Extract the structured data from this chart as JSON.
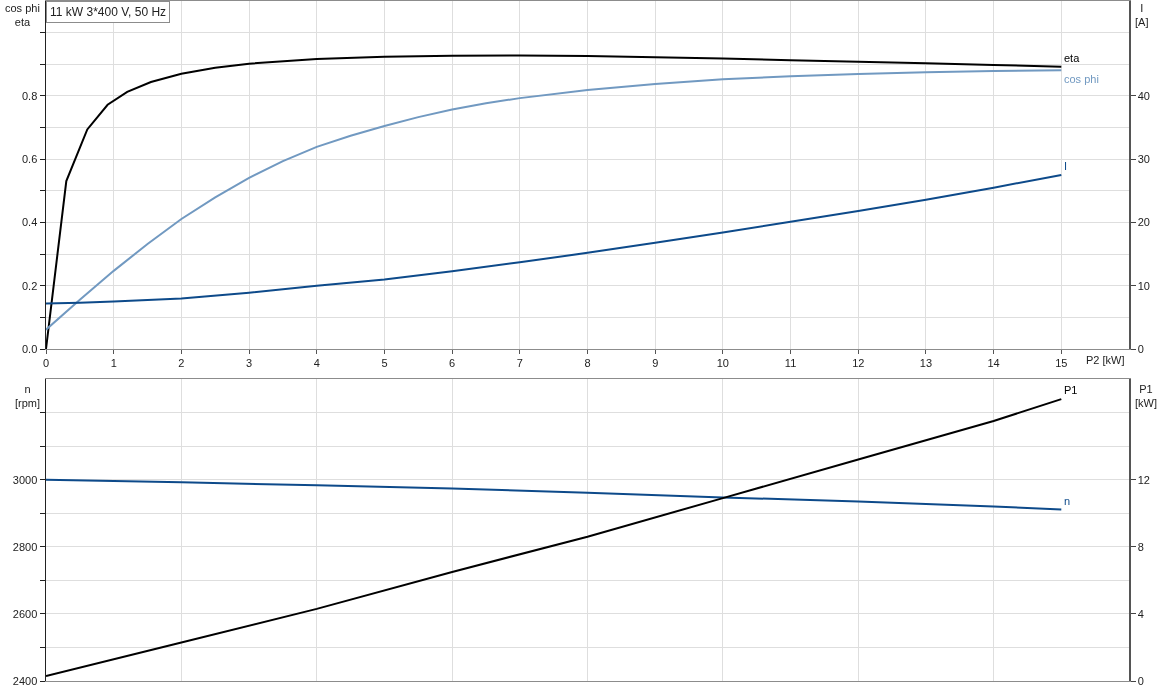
{
  "chart_data": [
    {
      "type": "line",
      "title": "11 kW 3*400 V, 50 Hz",
      "xlabel": "P2 [kW]",
      "ylabel": "cos phi\neta",
      "y2label": "I\n[A]",
      "xlim": [
        0,
        16
      ],
      "xticks": [
        0,
        1,
        2,
        3,
        4,
        5,
        6,
        7,
        8,
        9,
        10,
        11,
        12,
        13,
        14,
        15
      ],
      "ylim": [
        0,
        1.1
      ],
      "yticks": [
        {
          "value": 0,
          "label": "0.0"
        },
        {
          "value": 0.1,
          "label": null
        },
        0.2,
        {
          "value": 0.3,
          "label": null
        },
        0.4,
        {
          "value": 0.5,
          "label": null
        },
        0.6,
        {
          "value": 0.7,
          "label": null
        },
        0.8,
        {
          "value": 0.9,
          "label": null
        },
        {
          "value": 1,
          "label": null
        }
      ],
      "y2lim": [
        0,
        55
      ],
      "y2ticks": [
        0,
        10,
        20,
        30,
        40
      ],
      "grid": true,
      "legend": false,
      "series": [
        {
          "name": "eta",
          "color": "#000000",
          "x": [
            0,
            0.3,
            0.61,
            0.91,
            1.2,
            1.55,
            2,
            2.5,
            3,
            4,
            5,
            6,
            7,
            8,
            9,
            10,
            11,
            12,
            13,
            14,
            15
          ],
          "values": [
            0,
            0.531,
            0.694,
            0.772,
            0.813,
            0.844,
            0.87,
            0.889,
            0.902,
            0.917,
            0.924,
            0.927,
            0.928,
            0.926,
            0.922,
            0.918,
            0.913,
            0.908,
            0.903,
            0.898,
            0.892
          ]
        },
        {
          "name": "cos phi",
          "color": "#7199c1",
          "x": [
            0,
            0.5,
            1,
            1.5,
            2,
            2.5,
            3,
            3.5,
            4,
            4.5,
            5,
            5.5,
            6,
            6.5,
            7,
            8,
            9,
            10,
            11,
            12,
            13,
            14,
            15
          ],
          "values": [
            0.061,
            0.156,
            0.247,
            0.332,
            0.411,
            0.479,
            0.541,
            0.594,
            0.639,
            0.674,
            0.705,
            0.733,
            0.757,
            0.777,
            0.793,
            0.819,
            0.838,
            0.853,
            0.862,
            0.869,
            0.875,
            0.879,
            0.881
          ]
        },
        {
          "name": "I",
          "color": "#0d4a8a",
          "axis": "y2",
          "x": [
            0,
            0.5,
            1,
            2,
            3,
            4,
            5,
            6,
            7,
            8,
            9,
            10,
            11,
            12,
            13,
            14,
            15
          ],
          "values": [
            7.2,
            7.3,
            7.5,
            8.0,
            8.9,
            10.0,
            11.0,
            12.3,
            13.7,
            15.2,
            16.8,
            18.4,
            20.1,
            21.8,
            23.6,
            25.5,
            27.5
          ]
        }
      ]
    },
    {
      "type": "line",
      "ylabel": "n\n[rpm]",
      "y2label": "P1\n[kW]",
      "xlim": [
        0,
        16
      ],
      "xticks": [
        0,
        2,
        4,
        6,
        8,
        10,
        12,
        14
      ],
      "tick_labels": "y",
      "ylim": [
        2400,
        3300
      ],
      "yticks": [
        2400,
        {
          "value": 2500,
          "label": null
        },
        2600,
        {
          "value": 2700,
          "label": null
        },
        2800,
        {
          "value": 2900,
          "label": null
        },
        3000,
        {
          "value": 3100,
          "label": null
        },
        {
          "value": 3200,
          "label": null
        }
      ],
      "y2lim": [
        0,
        18
      ],
      "y2ticks": [
        0,
        4,
        8,
        12
      ],
      "grid": true,
      "legend": false,
      "series": [
        {
          "name": "P1",
          "color": "#000000",
          "axis": "y2",
          "x": [
            0,
            2,
            4,
            6,
            8,
            10,
            12,
            14,
            15
          ],
          "values": [
            0.3,
            2.3,
            4.3,
            6.5,
            8.6,
            10.9,
            13.2,
            15.5,
            16.8
          ]
        },
        {
          "name": "n",
          "color": "#0d4a8a",
          "x": [
            0,
            2,
            4,
            6,
            8,
            10,
            12,
            14,
            15
          ],
          "values": [
            3000,
            2992,
            2983,
            2974,
            2961,
            2947,
            2935,
            2920,
            2911
          ]
        }
      ]
    }
  ]
}
